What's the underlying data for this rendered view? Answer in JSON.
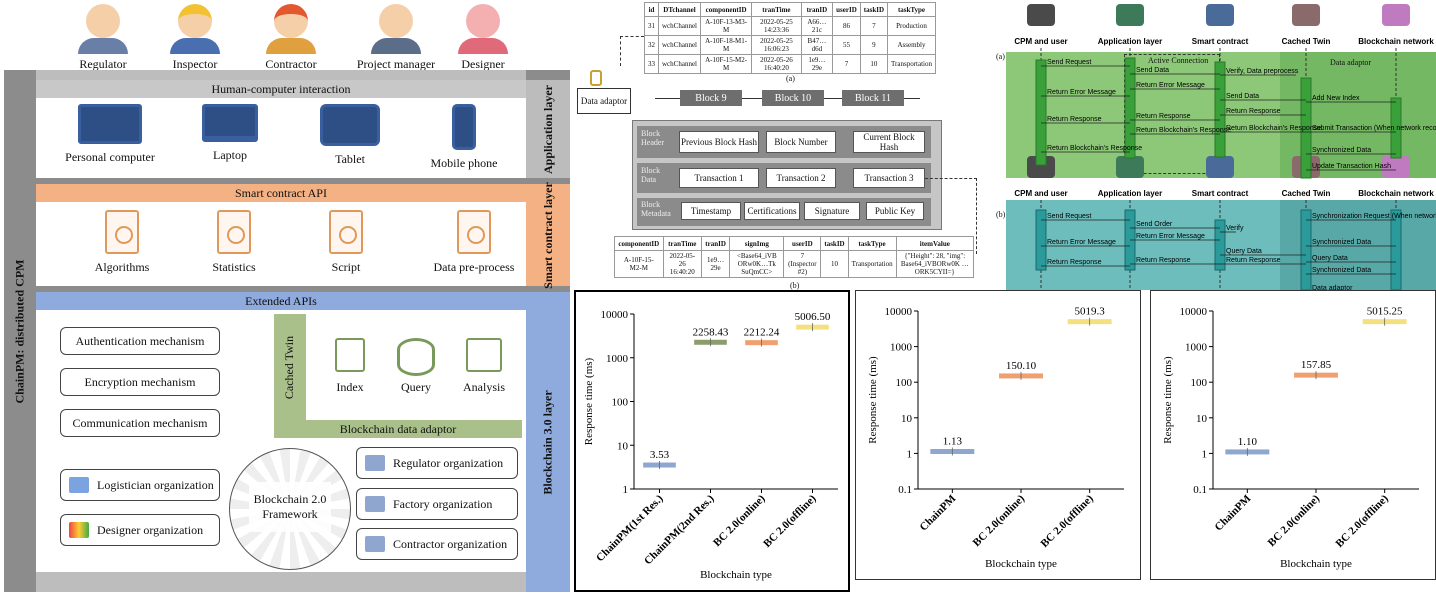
{
  "people": [
    "Regulator",
    "Inspector",
    "Contractor",
    "Project manager",
    "Designer"
  ],
  "architecture": {
    "side_label": "ChainPM: distributed CPM",
    "layers": {
      "application": {
        "label": "Application layer",
        "bar": "Human-computer interaction",
        "devices": [
          "Personal computer",
          "Laptop",
          "Tablet",
          "Mobile phone"
        ]
      },
      "smart_contract": {
        "label": "Smart contract layer",
        "bar": "Smart contract API",
        "items": [
          "Algorithms",
          "Statistics",
          "Script",
          "Data pre-process"
        ]
      },
      "blockchain": {
        "label": "Blockchain 3.0 layer",
        "bar": "Extended APIs",
        "mechanisms": [
          "Authentication mechanism",
          "Encryption mechanism",
          "Communication mechanism"
        ],
        "cached_twin": "Cached Twin",
        "twin_items": [
          "Index",
          "Query",
          "Analysis"
        ],
        "adaptor": "Blockchain data adaptor",
        "framework": "Blockchain 2.0 Framework",
        "orgs_left": [
          "Logistician organization",
          "Designer organization"
        ],
        "orgs_right": [
          "Regulator organization",
          "Factory organization",
          "Contractor organization"
        ]
      }
    }
  },
  "block_diagram": {
    "table_a": {
      "headers": [
        "id",
        "DTchannel",
        "componentID",
        "tranTime",
        "tranID",
        "userID",
        "taskID",
        "taskType"
      ],
      "rows": [
        [
          "31",
          "wchChannel",
          "A-10F-13-M3-M",
          "2022-05-25 14:23:36",
          "A66…21c",
          "86",
          "7",
          "Production"
        ],
        [
          "32",
          "wchChannel",
          "A-10F-18-M1-M",
          "2022-05-25 16:06:23",
          "B47…d6d",
          "55",
          "9",
          "Assembly"
        ],
        [
          "33",
          "wchChannel",
          "A-10F-15-M2-M",
          "2022-05-26 16:40:20",
          "1e9…29e",
          "7",
          "10",
          "Transportation"
        ]
      ],
      "caption": "(a)"
    },
    "adaptor_label": "Data adaptor",
    "blocks": [
      "Block 9",
      "Block 10",
      "Block 11"
    ],
    "rows": [
      {
        "label": "Block Header",
        "cells": [
          "Previous Block Hash",
          "Block Number",
          "Current Block Hash"
        ]
      },
      {
        "label": "Block Data",
        "cells": [
          "Transaction 1",
          "Transaction 2",
          "Transaction 3"
        ]
      },
      {
        "label": "Block Metadata",
        "cells": [
          "Timestamp",
          "Certifications",
          "Signature",
          "Public Key"
        ]
      }
    ],
    "table_b": {
      "headers": [
        "componentID",
        "tranTime",
        "tranID",
        "signImg",
        "userID",
        "taskID",
        "taskType",
        "itemValue"
      ],
      "row": [
        "A-10F-15-M2-M",
        "2022-05-26 16:40:20",
        "1e9…29e",
        "<Base64_iVB ORw0K…Tk SuQmCC>",
        "7 (Inspector #2)",
        "10",
        "Transportation",
        "{\"Height\": 28, \"img\": Base64_iVBORw0K …ORK5CYII=}"
      ],
      "caption": "(b)"
    }
  },
  "sequence": {
    "columns": [
      "CPM and user",
      "Application layer",
      "Smart contract",
      "Cached Twin",
      "Blockchain network"
    ],
    "a": {
      "tag": "(a)",
      "active": "Active Connection",
      "adaptor": "Data adaptor",
      "messages": [
        "Send Request",
        "Send Data",
        "Verify, Data preprocess",
        "Return Error Message",
        "Return Error Message",
        "Send Data",
        "Add New Index",
        "Return Response",
        "Return Response",
        "Return Response",
        "Return Blockchain's Response",
        "Return Blockchain's Response",
        "Return Blockchain's Response",
        "Submit Transaction (When network recover)",
        "Synchronized Data",
        "Update Transaction Hash"
      ]
    },
    "b": {
      "tag": "(b)",
      "messages": [
        "Send Request",
        "Send Order",
        "Verify",
        "Synchronization Request (When network recover)",
        "Return Error Message",
        "Return Error Message",
        "Synchronized Data",
        "Query Data",
        "Query Data",
        "Return Response",
        "Return Response",
        "Return Response",
        "Synchronized Data",
        "Data adaptor"
      ]
    }
  },
  "chart_data": [
    {
      "type": "bar",
      "categories": [
        "ChainPM(1st Res.)",
        "ChainPM(2nd Res.)",
        "BC 2.0(online)",
        "BC 2.0(offline)"
      ],
      "values": [
        3.53,
        2258.43,
        2212.24,
        5006.5
      ],
      "labels": [
        "3.53",
        "2258.43",
        "2212.24",
        "5006.50"
      ],
      "colors": [
        "#8fa6cf",
        "#8c9c6e",
        "#f0a070",
        "#f5e080"
      ],
      "xlabel": "Blockchain type",
      "ylabel": "Response time (ms)",
      "scale": "log",
      "ylim": [
        1,
        10000
      ],
      "ticks": [
        "1",
        "10",
        "100",
        "1000",
        "10000"
      ]
    },
    {
      "type": "bar",
      "categories": [
        "ChainPM",
        "BC 2.0(online)",
        "BC 2.0(offline)"
      ],
      "values": [
        1.13,
        150.1,
        5019.3
      ],
      "labels": [
        "1.13",
        "150.10",
        "5019.3"
      ],
      "colors": [
        "#8fa6cf",
        "#f0a070",
        "#f5e080"
      ],
      "xlabel": "Blockchain type",
      "ylabel": "Response time (ms)",
      "scale": "log",
      "ylim": [
        0.1,
        10000
      ],
      "ticks": [
        "0.1",
        "1",
        "10",
        "100",
        "1000",
        "10000"
      ]
    },
    {
      "type": "bar",
      "categories": [
        "ChainPM",
        "BC 2.0(online)",
        "BC 2.0(offline)"
      ],
      "values": [
        1.1,
        157.85,
        5015.25
      ],
      "labels": [
        "1.10",
        "157.85",
        "5015.25"
      ],
      "colors": [
        "#8fa6cf",
        "#f0a070",
        "#f5e080"
      ],
      "xlabel": "Blockchain type",
      "ylabel": "Response time (ms)",
      "scale": "log",
      "ylim": [
        0.1,
        10000
      ],
      "ticks": [
        "0.1",
        "1",
        "10",
        "100",
        "1000",
        "10000"
      ]
    }
  ]
}
